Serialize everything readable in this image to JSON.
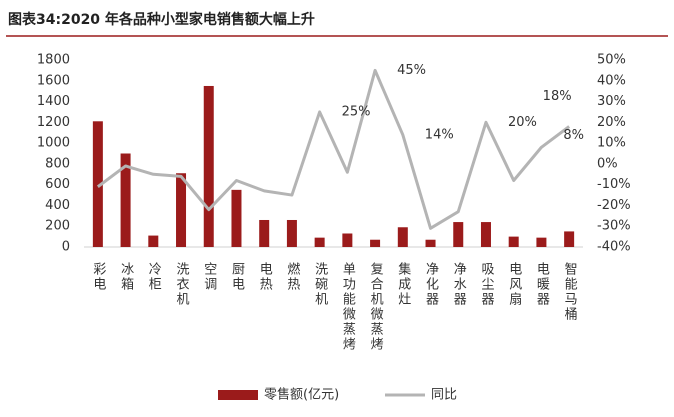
{
  "chart_data": {
    "type": "bar_line",
    "title": "图表34:2020 年各品种小型家电销售额大幅上升",
    "categories": [
      "彩电",
      "冰箱",
      "冷柜",
      "洗衣机",
      "空调",
      "厨电",
      "电热",
      "燃热",
      "洗碗机",
      "单功能微蒸烤",
      "复合机微蒸烤",
      "集成灶",
      "净化器",
      "净水器",
      "吸尘器",
      "电风扇",
      "电暖器",
      "智能马桶"
    ],
    "series": [
      {
        "name": "零售额(亿元)",
        "type": "bar",
        "color": "#9b1b1b",
        "values": [
          1210,
          900,
          110,
          710,
          1550,
          550,
          260,
          260,
          90,
          130,
          70,
          190,
          70,
          240,
          240,
          100,
          90,
          150
        ]
      },
      {
        "name": "同比",
        "type": "line",
        "axis": "y2",
        "color": "#b4b4b4",
        "values": [
          -11,
          -1,
          -5,
          -6,
          -22,
          -8,
          -13,
          -15,
          25,
          -4,
          45,
          14,
          -31,
          -23,
          20,
          -8,
          8,
          18
        ],
        "value_labels": [
          null,
          null,
          null,
          null,
          null,
          null,
          null,
          null,
          "25%",
          null,
          "45%",
          "14%",
          null,
          null,
          "20%",
          null,
          "8%",
          "18%"
        ]
      }
    ],
    "ylim": [
      0,
      1800
    ],
    "yticks": [
      0,
      200,
      400,
      600,
      800,
      1000,
      1200,
      1400,
      1600,
      1800
    ],
    "y2lim": [
      -40,
      50
    ],
    "y2ticks": [
      {
        "value": -40,
        "label": "-40%"
      },
      {
        "value": -30,
        "label": "-30%"
      },
      {
        "value": -20,
        "label": "-20%"
      },
      {
        "value": -10,
        "label": "-10%"
      },
      {
        "value": 0,
        "label": "0%"
      },
      {
        "value": 10,
        "label": "10%"
      },
      {
        "value": 20,
        "label": "20%"
      },
      {
        "value": 30,
        "label": "30%"
      },
      {
        "value": 40,
        "label": "40%"
      },
      {
        "value": 50,
        "label": "50%"
      }
    ],
    "legend": "bottom"
  }
}
